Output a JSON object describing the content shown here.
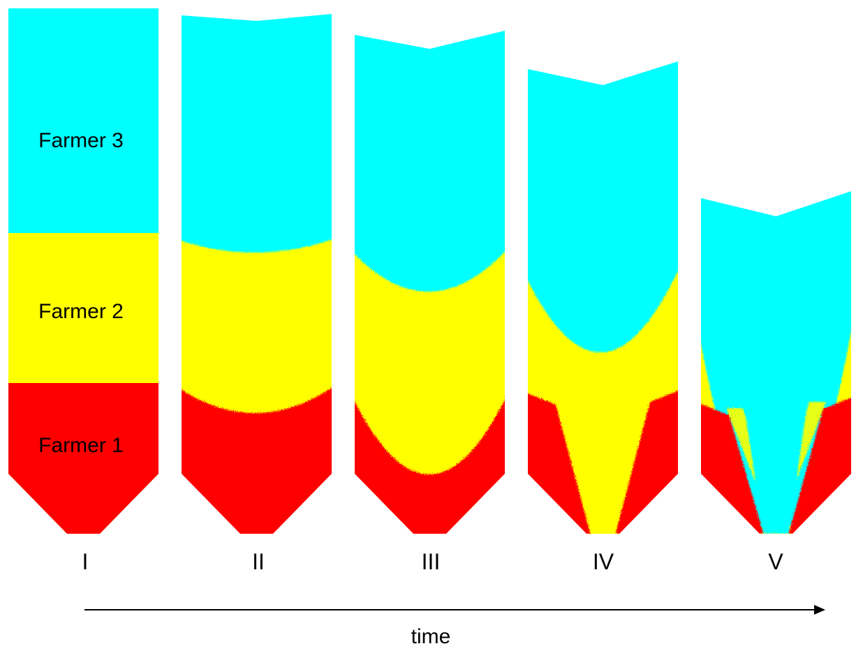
{
  "colors": {
    "farmer_1": "#ff0000",
    "farmer_2": "#ffff00",
    "farmer_3": "#00ffff",
    "text": "#000000",
    "background": "#ffffff"
  },
  "layer_labels": {
    "farmer_3": "Farmer 3",
    "farmer_2": "Farmer 2",
    "farmer_1": "Farmer 1"
  },
  "stages": [
    {
      "label": "I"
    },
    {
      "label": "II"
    },
    {
      "label": "III"
    },
    {
      "label": "IV"
    },
    {
      "label": "V"
    }
  ],
  "axis": {
    "label": "time",
    "arrow": "right-pointing-arrow"
  }
}
